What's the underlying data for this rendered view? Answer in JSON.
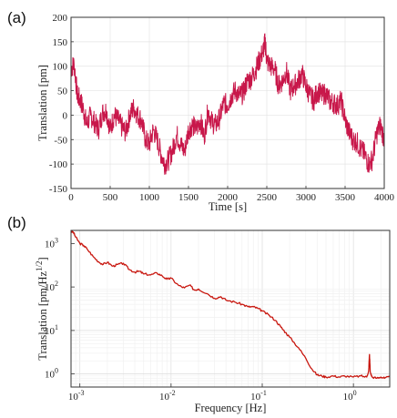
{
  "chart_data": [
    {
      "panel_label": "(a)",
      "type": "line",
      "xlabel": "Time [s]",
      "ylabel": "Translation [pm]",
      "xlim": [
        0,
        4000
      ],
      "ylim": [
        -150,
        200
      ],
      "xticks": [
        0,
        500,
        1000,
        1500,
        2000,
        2500,
        3000,
        3500,
        4000
      ],
      "yticks": [
        -150,
        -100,
        -50,
        0,
        50,
        100,
        150,
        200
      ],
      "grid": true,
      "color": "#c8174a",
      "series": [
        {
          "x": [
            0,
            40,
            80,
            120,
            160,
            200,
            250,
            300,
            350,
            400,
            450,
            500,
            550,
            600,
            650,
            700,
            750,
            800,
            850,
            900,
            950,
            1000,
            1050,
            1100,
            1150,
            1200,
            1250,
            1300,
            1350,
            1400,
            1450,
            1500,
            1550,
            1600,
            1650,
            1700,
            1750,
            1800,
            1850,
            1900,
            1950,
            2000,
            2050,
            2100,
            2150,
            2200,
            2250,
            2300,
            2350,
            2400,
            2450,
            2480,
            2500,
            2550,
            2600,
            2650,
            2700,
            2750,
            2800,
            2850,
            2900,
            2950,
            3000,
            3050,
            3100,
            3150,
            3200,
            3250,
            3300,
            3350,
            3400,
            3450,
            3500,
            3550,
            3600,
            3650,
            3700,
            3750,
            3800,
            3850,
            3900,
            3950,
            4000
          ],
          "values": [
            95,
            105,
            40,
            30,
            10,
            -20,
            0,
            -15,
            -30,
            5,
            10,
            -30,
            0,
            -10,
            -25,
            -35,
            0,
            15,
            0,
            -10,
            -50,
            -60,
            -30,
            -50,
            -80,
            -100,
            -90,
            -70,
            -40,
            -60,
            -75,
            -30,
            -20,
            -30,
            -10,
            -45,
            10,
            -15,
            -20,
            -5,
            25,
            20,
            40,
            50,
            40,
            45,
            70,
            75,
            90,
            110,
            130,
            150,
            110,
            100,
            95,
            60,
            70,
            90,
            50,
            60,
            70,
            85,
            60,
            40,
            30,
            50,
            40,
            45,
            30,
            25,
            20,
            30,
            -10,
            -35,
            -50,
            -55,
            -70,
            -80,
            -100,
            -90,
            -40,
            -20,
            -50
          ]
        }
      ]
    },
    {
      "panel_label": "(b)",
      "type": "line",
      "xscale": "log",
      "yscale": "log",
      "xlabel": "Frequency [Hz]",
      "ylabel_main": "Translation [pm/Hz",
      "ylabel_sup": "1/2",
      "ylabel_end": "]",
      "xlim": [
        0.0008,
        2.5
      ],
      "ylim": [
        0.5,
        2000
      ],
      "grid": true,
      "color": "#c8170f",
      "xtick_labels": [
        {
          "base": "10",
          "exp": "-3",
          "value": 0.001
        },
        {
          "base": "10",
          "exp": "-2",
          "value": 0.01
        },
        {
          "base": "10",
          "exp": "-1",
          "value": 0.1
        },
        {
          "base": "10",
          "exp": "0",
          "value": 1
        }
      ],
      "ytick_labels": [
        {
          "base": "10",
          "exp": "0",
          "value": 1
        },
        {
          "base": "10",
          "exp": "1",
          "value": 10
        },
        {
          "base": "10",
          "exp": "2",
          "value": 100
        },
        {
          "base": "10",
          "exp": "3",
          "value": 1000
        }
      ],
      "series": [
        {
          "x": [
            0.0008,
            0.00085,
            0.0009,
            0.001,
            0.0011,
            0.0012,
            0.0014,
            0.0016,
            0.0018,
            0.002,
            0.0023,
            0.0026,
            0.003,
            0.0035,
            0.004,
            0.0045,
            0.005,
            0.006,
            0.007,
            0.008,
            0.009,
            0.01,
            0.012,
            0.014,
            0.016,
            0.018,
            0.02,
            0.025,
            0.03,
            0.035,
            0.04,
            0.05,
            0.06,
            0.07,
            0.08,
            0.09,
            0.1,
            0.12,
            0.14,
            0.16,
            0.18,
            0.2,
            0.25,
            0.3,
            0.35,
            0.4,
            0.45,
            0.5,
            0.6,
            0.7,
            0.8,
            1.0,
            1.2,
            1.4,
            1.47,
            1.5,
            1.53,
            1.6,
            1.8,
            2.0,
            2.2,
            2.5
          ],
          "values": [
            1900,
            1800,
            1400,
            1000,
            900,
            750,
            500,
            380,
            330,
            370,
            300,
            330,
            350,
            250,
            220,
            230,
            200,
            190,
            210,
            180,
            150,
            160,
            110,
            95,
            110,
            85,
            90,
            70,
            55,
            60,
            50,
            45,
            40,
            35,
            35,
            32,
            28,
            22,
            17,
            12,
            9,
            7,
            4,
            2.3,
            1.3,
            0.95,
            0.9,
            0.85,
            0.9,
            0.85,
            0.9,
            0.85,
            0.9,
            0.85,
            1.2,
            2.8,
            1.1,
            0.85,
            0.8,
            0.85,
            0.8,
            0.85
          ]
        }
      ]
    }
  ]
}
